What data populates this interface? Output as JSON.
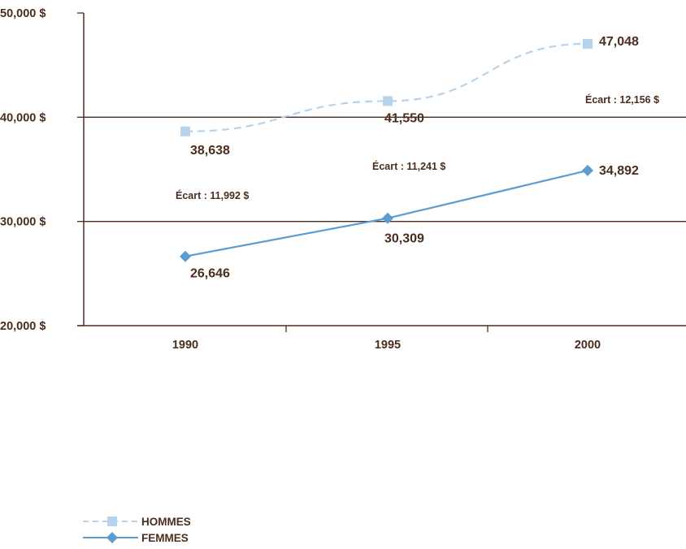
{
  "chart_data": {
    "type": "line",
    "categories": [
      "1990",
      "1995",
      "2000"
    ],
    "ylim": [
      20000,
      50000
    ],
    "yticks": [
      {
        "value": 50000,
        "label": "50,000 $"
      },
      {
        "value": 40000,
        "label": "40,000 $"
      },
      {
        "value": 30000,
        "label": "30,000 $"
      },
      {
        "value": 20000,
        "label": "20,000 $"
      }
    ],
    "grid": "horizontal",
    "series": [
      {
        "name": "HOMMES",
        "values": [
          38638,
          41550,
          47048
        ],
        "labels": [
          "38,638",
          "41,550",
          "47,048"
        ],
        "color": "#b5d3ec",
        "style": "dashed",
        "marker": "square"
      },
      {
        "name": "FEMMES",
        "values": [
          26646,
          30309,
          34892
        ],
        "labels": [
          "26,646",
          "30,309",
          "34,892"
        ],
        "color": "#5b9cd1",
        "style": "solid",
        "marker": "diamond"
      }
    ],
    "annotations": [
      {
        "category": "1990",
        "text": "Écart : 11,992 $"
      },
      {
        "category": "1995",
        "text": "Écart : 11,241 $"
      },
      {
        "category": "2000",
        "text": "Écart : 12,156 $"
      }
    ],
    "legend_position": "bottom-left"
  },
  "colors": {
    "axis": "#4b2d1e",
    "text": "#4b2d1e"
  }
}
